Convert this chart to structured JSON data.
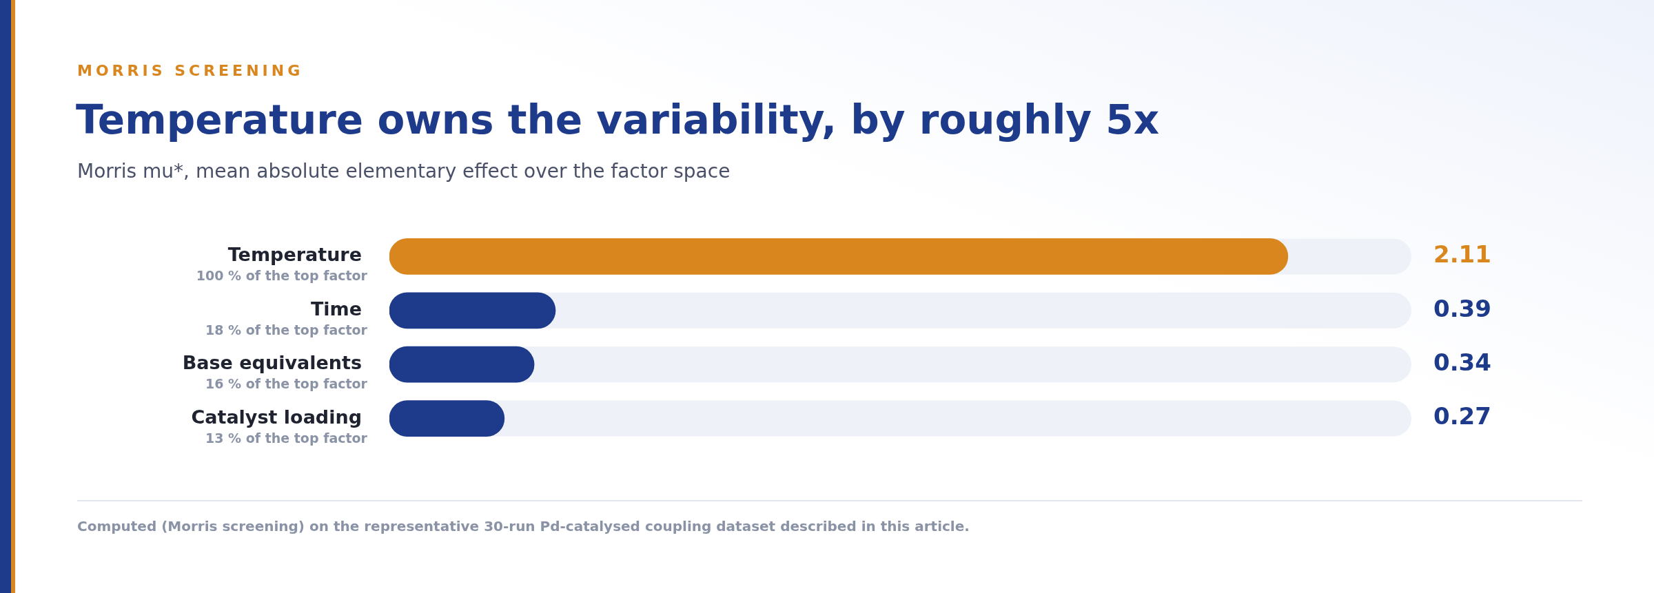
{
  "chart_data": {
    "type": "bar",
    "orientation": "horizontal",
    "title": "Temperature owns the variability, by roughly 5x",
    "subtitle": "Morris mu*, mean absolute elementary effect over the factor space",
    "categories": [
      "Temperature",
      "Time",
      "Base equivalents",
      "Catalyst loading"
    ],
    "values": [
      2.11,
      0.39,
      0.34,
      0.27
    ],
    "colors": [
      "#d9861e",
      "#1e3a8a",
      "#1e3a8a",
      "#1e3a8a"
    ],
    "xlim": [
      0,
      2.4
    ],
    "data_labels": true,
    "grid": false,
    "legend": false,
    "annotations": [
      "MORRIS SCREENING",
      "100 % of the top factor",
      "18 % of the top factor",
      "16 % of the top factor",
      "13 % of the top factor",
      "Computed (Morris screening) on the representative 30-run Pd-catalysed coupling dataset described in this article."
    ]
  }
}
